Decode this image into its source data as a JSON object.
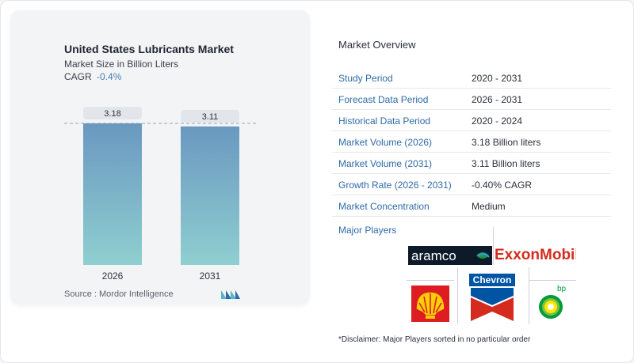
{
  "chart_data": {
    "type": "bar",
    "title": "United States Lubricants Market",
    "subtitle": "Market Size in Billion Liters",
    "cagr_label": "CAGR",
    "cagr_value": "-0.4%",
    "categories": [
      "2026",
      "2031"
    ],
    "values": [
      3.18,
      3.11
    ],
    "value_labels": [
      "3.18",
      "3.11"
    ],
    "colors": {
      "bar_top": "#6a98c0",
      "bar_bottom": "#8fcfd0",
      "label_bg": "#e2e5ea",
      "dashed_line": "#9aa3ad"
    },
    "grid": false,
    "legend": "none"
  },
  "source": "Source :  Mordor Intelligence",
  "overview": {
    "title": "Market Overview",
    "rows": [
      {
        "label": "Study Period",
        "value": "2020 - 2031"
      },
      {
        "label": "Forecast Data Period",
        "value": "2026 - 2031"
      },
      {
        "label": "Historical Data Period",
        "value": "2020 - 2024"
      },
      {
        "label": "Market Volume (2026)",
        "value": "3.18 Billion liters"
      },
      {
        "label": "Market Volume (2031)",
        "value": "3.11 Billion liters"
      },
      {
        "label": "Growth Rate (2026 - 2031)",
        "value": "-0.40% CAGR"
      },
      {
        "label": "Market Concentration",
        "value": "Medium"
      }
    ],
    "players_title": "Major Players",
    "players": [
      {
        "name": "aramco",
        "icon": "aramco-logo"
      },
      {
        "name": "ExxonMobil",
        "icon": "exxonmobil-logo"
      },
      {
        "name": "Chevron",
        "icon": "chevron-logo"
      },
      {
        "name": "bp",
        "icon": "bp-logo"
      },
      {
        "name": "Shell",
        "icon": "shell-logo"
      }
    ],
    "disclaimer": "*Disclaimer: Major Players sorted in no particular order"
  },
  "accent_color": "#2f6aa8"
}
